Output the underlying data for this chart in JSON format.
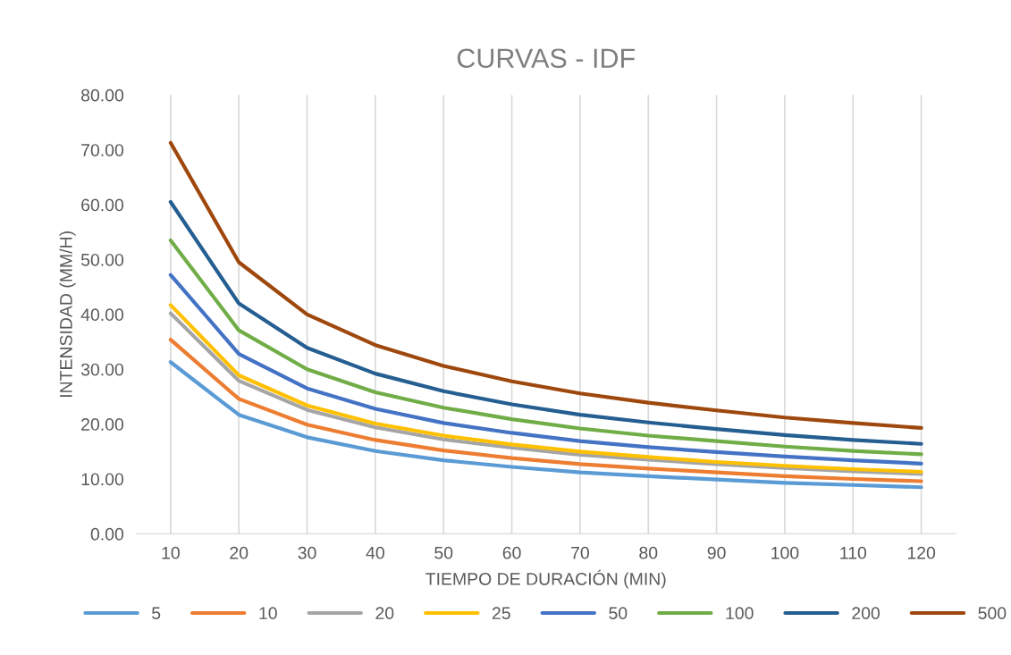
{
  "chart_data": {
    "type": "line",
    "title": "CURVAS - IDF",
    "xlabel": "TIEMPO DE DURACIÓN (MIN)",
    "ylabel": "INTENSIDAD (MM/H)",
    "categories": [
      "10",
      "20",
      "30",
      "40",
      "50",
      "60",
      "70",
      "80",
      "90",
      "100",
      "110",
      "120"
    ],
    "ylim": [
      0,
      80
    ],
    "yticks": [
      {
        "value": 0,
        "label": "0.00"
      },
      {
        "value": 10,
        "label": "10.00"
      },
      {
        "value": 20,
        "label": "20.00"
      },
      {
        "value": 30,
        "label": "30.00"
      },
      {
        "value": 40,
        "label": "40.00"
      },
      {
        "value": 50,
        "label": "50.00"
      },
      {
        "value": 60,
        "label": "60.00"
      },
      {
        "value": 70,
        "label": "70.00"
      },
      {
        "value": 80,
        "label": "80.00"
      }
    ],
    "grid": "x",
    "legend": "bottom",
    "marker": "none",
    "line_style": "solid",
    "series": [
      {
        "name": "5",
        "color": "#5b9bd5",
        "values": [
          31.3,
          21.7,
          17.6,
          15.1,
          13.4,
          12.2,
          11.2,
          10.5,
          9.9,
          9.3,
          8.9,
          8.5
        ]
      },
      {
        "name": "10",
        "color": "#ed7d31",
        "values": [
          35.4,
          24.6,
          19.9,
          17.1,
          15.2,
          13.8,
          12.7,
          11.9,
          11.2,
          10.5,
          10.0,
          9.6
        ]
      },
      {
        "name": "20",
        "color": "#a5a5a5",
        "values": [
          40.2,
          27.9,
          22.6,
          19.4,
          17.2,
          15.7,
          14.4,
          13.5,
          12.7,
          12.0,
          11.4,
          10.9
        ]
      },
      {
        "name": "25",
        "color": "#ffc000",
        "values": [
          41.7,
          28.9,
          23.4,
          20.1,
          17.9,
          16.3,
          15.0,
          14.0,
          13.1,
          12.4,
          11.8,
          11.3
        ]
      },
      {
        "name": "50",
        "color": "#4472c4",
        "values": [
          47.2,
          32.8,
          26.5,
          22.8,
          20.2,
          18.4,
          16.9,
          15.8,
          14.9,
          14.1,
          13.4,
          12.8
        ]
      },
      {
        "name": "100",
        "color": "#70ad47",
        "values": [
          53.5,
          37.1,
          30.0,
          25.8,
          23.0,
          20.9,
          19.2,
          17.9,
          16.9,
          15.9,
          15.1,
          14.5
        ]
      },
      {
        "name": "200",
        "color": "#255e91",
        "values": [
          60.5,
          42.0,
          33.9,
          29.2,
          26.0,
          23.6,
          21.7,
          20.3,
          19.1,
          18.0,
          17.1,
          16.4
        ]
      },
      {
        "name": "500",
        "color": "#9e480e",
        "values": [
          71.3,
          49.5,
          40.0,
          34.4,
          30.6,
          27.8,
          25.6,
          23.9,
          22.5,
          21.2,
          20.2,
          19.3
        ]
      }
    ]
  }
}
